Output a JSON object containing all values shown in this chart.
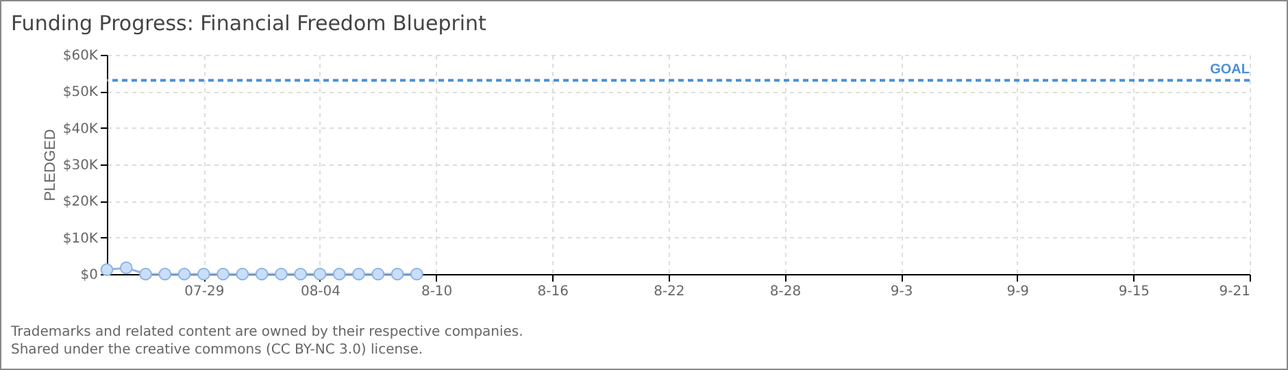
{
  "chart_data": {
    "type": "line",
    "title": "Funding Progress: Financial Freedom Blueprint",
    "ylabel": "PLEDGED",
    "x": [
      "--07-24",
      "--07-25",
      "--07-26",
      "--07-27",
      "--07-28",
      "--07-29",
      "--07-30",
      "--07-31",
      "--08-01",
      "--08-02",
      "--08-03",
      "--08-04",
      "--08-05",
      "--08-06",
      "--08-07",
      "--08-08",
      "--08-09"
    ],
    "series": [
      {
        "color": "#8fb4e3",
        "values": [
          1200,
          1700,
          0,
          0,
          0,
          0,
          0,
          0,
          0,
          0,
          0,
          0,
          0,
          0,
          0,
          0,
          0
        ]
      }
    ],
    "xlim": [
      "--07-24",
      "--09-21"
    ],
    "xticks": [
      {
        "value": "--07-29",
        "label": "07-29"
      },
      {
        "value": "--08-04",
        "label": "08-04"
      },
      {
        "value": "--08-10",
        "label": "8-10"
      },
      {
        "value": "--08-16",
        "label": "8-16"
      },
      {
        "value": "--08-22",
        "label": "8-22"
      },
      {
        "value": "--08-28",
        "label": "8-28"
      },
      {
        "value": "--09-03",
        "label": "9-3"
      },
      {
        "value": "--09-09",
        "label": "9-9"
      },
      {
        "value": "--09-15",
        "label": "9-15"
      },
      {
        "value": "--09-21",
        "label": "9-21"
      }
    ],
    "ylim": [
      0,
      60000
    ],
    "yticks": [
      {
        "value": 0,
        "label": "$0"
      },
      {
        "value": 10000,
        "label": "$10K"
      },
      {
        "value": 20000,
        "label": "$20K"
      },
      {
        "value": 30000,
        "label": "$30K"
      },
      {
        "value": 40000,
        "label": "$40K"
      },
      {
        "value": 50000,
        "label": "$50K"
      },
      {
        "value": 60000,
        "label": "$60K"
      }
    ],
    "ref_lines": [
      {
        "axis": "y",
        "value": 53000,
        "label": "GOAL",
        "color": "#4a90d9",
        "line_style": "dashed"
      }
    ],
    "grid": true,
    "marker": "circle",
    "line_style": "solid",
    "annotations": [
      "Trademarks and related content are owned by their respective companies.",
      "Shared under the creative commons (CC BY-NC 3.0) license."
    ]
  }
}
